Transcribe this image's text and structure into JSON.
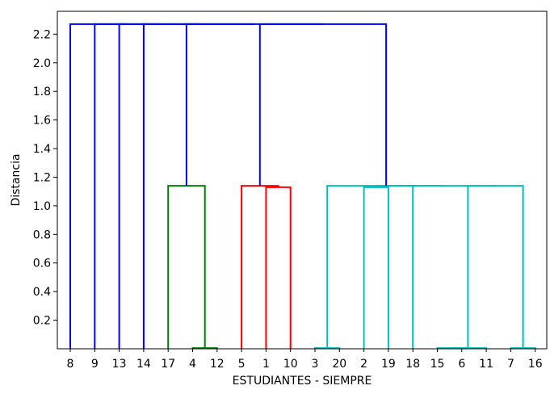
{
  "chart_data": {
    "type": "dendrogram",
    "xlabel": "ESTUDIANTES - SIEMPRE",
    "ylabel": "Distancia",
    "ylim": [
      0,
      2.36
    ],
    "yticks": [
      "0.2",
      "0.4",
      "0.6",
      "0.8",
      "1.0",
      "1.2",
      "1.4",
      "1.6",
      "1.8",
      "2.0",
      "2.2"
    ],
    "leaves": [
      "8",
      "9",
      "13",
      "14",
      "17",
      "4",
      "12",
      "5",
      "1",
      "10",
      "3",
      "20",
      "2",
      "19",
      "18",
      "15",
      "6",
      "11",
      "7",
      "16"
    ],
    "colors": {
      "blue": "#0000ff",
      "green": "#008000",
      "red": "#ff0000",
      "cyan": "#00bfbf"
    },
    "links": [
      {
        "x1": 5,
        "h1": 0,
        "x2": 6,
        "h2": 0,
        "h": 0.005,
        "color": "green"
      },
      {
        "x1": 4,
        "h1": 0,
        "x2": 5.5,
        "h2": 0.005,
        "h": 1.14,
        "color": "green"
      },
      {
        "x1": 8,
        "h1": 0,
        "x2": 9,
        "h2": 0,
        "h": 1.13,
        "color": "red"
      },
      {
        "x1": 7,
        "h1": 0,
        "x2": 8.5,
        "h2": 1.13,
        "h": 1.14,
        "color": "red"
      },
      {
        "x1": 10,
        "h1": 0,
        "x2": 11,
        "h2": 0,
        "h": 0.005,
        "color": "cyan"
      },
      {
        "x1": 12,
        "h1": 0,
        "x2": 13,
        "h2": 0,
        "h": 1.13,
        "color": "cyan"
      },
      {
        "x1": 15,
        "h1": 0,
        "x2": 16,
        "h2": 0,
        "h": 0.005,
        "color": "cyan"
      },
      {
        "x1": 15.5,
        "h1": 0.005,
        "x2": 17,
        "h2": 0,
        "h": 0.005,
        "color": "cyan"
      },
      {
        "x1": 18,
        "h1": 0,
        "x2": 19,
        "h2": 0,
        "h": 0.005,
        "color": "cyan"
      },
      {
        "x1": 16.25,
        "h1": 0.005,
        "x2": 18.5,
        "h2": 0.005,
        "h": 1.14,
        "color": "cyan"
      },
      {
        "x1": 12.5,
        "h1": 1.13,
        "x2": 14,
        "h2": 0,
        "h": 1.14,
        "color": "cyan"
      },
      {
        "x1": 13.25,
        "h1": 1.14,
        "x2": 17.375,
        "h2": 1.14,
        "h": 1.14,
        "color": "cyan"
      },
      {
        "x1": 10.5,
        "h1": 0.005,
        "x2": 15.3125,
        "h2": 1.14,
        "h": 1.14,
        "color": "cyan"
      },
      {
        "x1": 7.75,
        "h1": 1.14,
        "x2": 12.90625,
        "h2": 1.14,
        "h": 2.27,
        "color": "blue"
      },
      {
        "x1": 4.75,
        "h1": 1.14,
        "x2": 10.328,
        "h2": 2.27,
        "h": 2.27,
        "color": "blue"
      },
      {
        "x1": 3,
        "h1": 0,
        "x2": 7.539,
        "h2": 2.27,
        "h": 2.27,
        "color": "blue"
      },
      {
        "x1": 2,
        "h1": 0,
        "x2": 5.27,
        "h2": 2.27,
        "h": 2.27,
        "color": "blue"
      },
      {
        "x1": 1,
        "h1": 0,
        "x2": 3.635,
        "h2": 2.27,
        "h": 2.27,
        "color": "blue"
      },
      {
        "x1": 0,
        "h1": 0,
        "x2": 2.317,
        "h2": 2.27,
        "h": 2.27,
        "color": "blue"
      }
    ]
  }
}
